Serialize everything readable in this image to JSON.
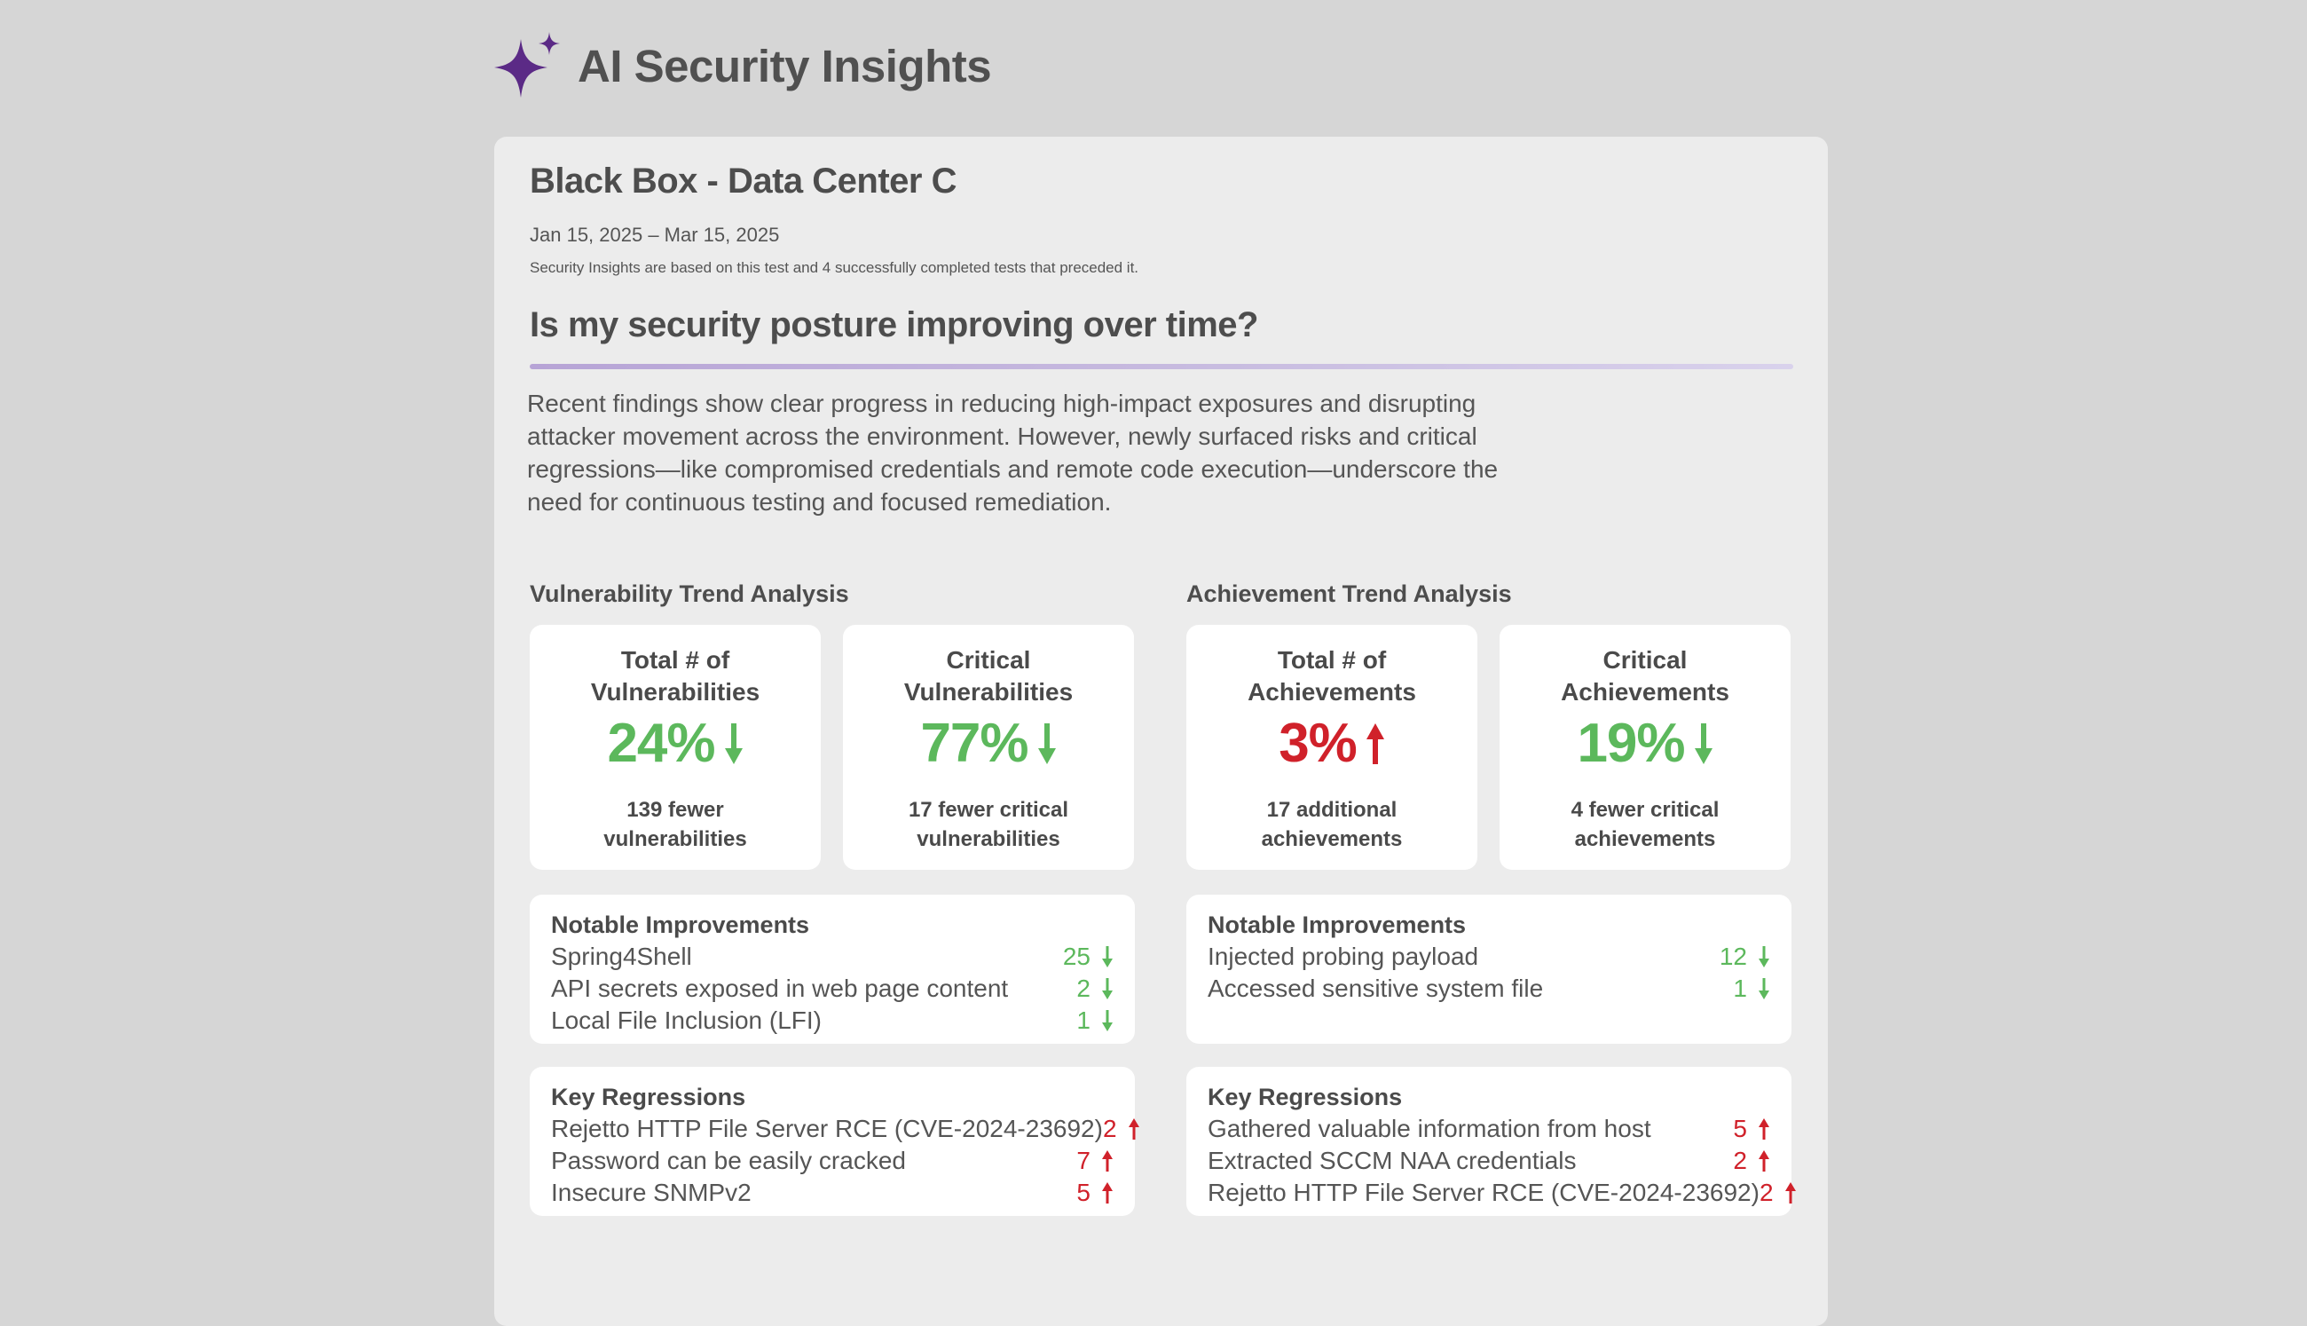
{
  "header": {
    "title": "AI Security Insights",
    "icon": "sparkle-icon",
    "icon_color": "#5b2a86"
  },
  "report": {
    "title": "Black Box - Data Center C",
    "date_range": "Jan 15, 2025 – Mar 15, 2025",
    "basis_note": "Security Insights are based on this test and 4 successfully completed tests that preceded it.",
    "question": "Is my security posture improving over time?",
    "summary": "Recent findings show clear progress in reducing high-impact exposures and disrupting attacker movement across the environment. However, newly surfaced risks and critical regressions—like compromised credentials and remote code execution—underscore the need for continuous testing and focused remediation."
  },
  "colors": {
    "improvement": "#5cb85c",
    "regression": "#d0212a",
    "accent": "#b7a4d6"
  },
  "vulnerability": {
    "heading": "Vulnerability Trend Analysis",
    "kpis": [
      {
        "label": "Total # of Vulnerabilities",
        "value": "24%",
        "direction": "down",
        "sub": "139 fewer vulnerabilities"
      },
      {
        "label": "Critical Vulnerabilities",
        "value": "77%",
        "direction": "down",
        "sub": "17 fewer critical vulnerabilities"
      }
    ],
    "improvements": {
      "title": "Notable Improvements",
      "items": [
        {
          "label": "Spring4Shell",
          "count": "25",
          "direction": "down"
        },
        {
          "label": "API secrets exposed in web page content",
          "count": "2",
          "direction": "down"
        },
        {
          "label": "Local File Inclusion (LFI)",
          "count": "1",
          "direction": "down"
        }
      ]
    },
    "regressions": {
      "title": "Key Regressions",
      "items": [
        {
          "label": "Rejetto HTTP File Server RCE (CVE-2024-23692)",
          "count": "2",
          "direction": "up"
        },
        {
          "label": "Password can be easily cracked",
          "count": "7",
          "direction": "up"
        },
        {
          "label": "Insecure SNMPv2",
          "count": "5",
          "direction": "up"
        }
      ]
    }
  },
  "achievement": {
    "heading": "Achievement Trend Analysis",
    "kpis": [
      {
        "label": "Total # of Achievements",
        "value": "3%",
        "direction": "up",
        "sub": "17 additional achievements"
      },
      {
        "label": "Critical Achievements",
        "value": "19%",
        "direction": "down",
        "sub": "4 fewer critical achievements"
      }
    ],
    "improvements": {
      "title": "Notable Improvements",
      "items": [
        {
          "label": "Injected probing payload",
          "count": "12",
          "direction": "down"
        },
        {
          "label": "Accessed sensitive system file",
          "count": "1",
          "direction": "down"
        }
      ]
    },
    "regressions": {
      "title": "Key Regressions",
      "items": [
        {
          "label": "Gathered valuable information from host",
          "count": "5",
          "direction": "up"
        },
        {
          "label": "Extracted SCCM NAA credentials",
          "count": "2",
          "direction": "up"
        },
        {
          "label": "Rejetto HTTP File Server RCE (CVE-2024-23692)",
          "count": "2",
          "direction": "up"
        }
      ]
    }
  }
}
